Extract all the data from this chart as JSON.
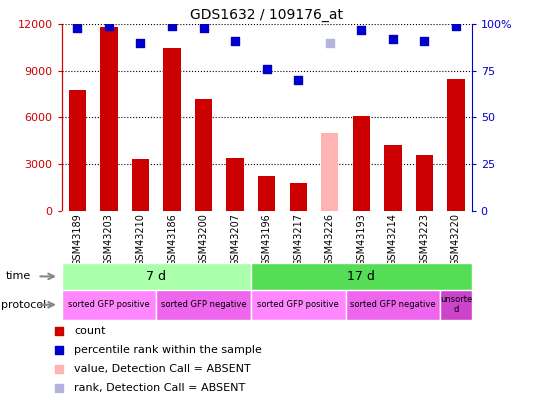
{
  "title": "GDS1632 / 109176_at",
  "samples": [
    "GSM43189",
    "GSM43203",
    "GSM43210",
    "GSM43186",
    "GSM43200",
    "GSM43207",
    "GSM43196",
    "GSM43217",
    "GSM43226",
    "GSM43193",
    "GSM43214",
    "GSM43223",
    "GSM43220"
  ],
  "counts": [
    7800,
    11800,
    3300,
    10500,
    7200,
    3400,
    2200,
    1800,
    5000,
    6100,
    4200,
    3600,
    8500
  ],
  "count_colors": [
    "#cc0000",
    "#cc0000",
    "#cc0000",
    "#cc0000",
    "#cc0000",
    "#cc0000",
    "#cc0000",
    "#cc0000",
    "#ffb3b3",
    "#cc0000",
    "#cc0000",
    "#cc0000",
    "#cc0000"
  ],
  "percentile_ranks": [
    98,
    99,
    90,
    99,
    98,
    91,
    76,
    70,
    90,
    97,
    92,
    91,
    99
  ],
  "percentile_colors": [
    "#0000cc",
    "#0000cc",
    "#0000cc",
    "#0000cc",
    "#0000cc",
    "#0000cc",
    "#0000cc",
    "#0000cc",
    "#b3b3dd",
    "#0000cc",
    "#0000cc",
    "#0000cc",
    "#0000cc"
  ],
  "ylim_left": [
    0,
    12000
  ],
  "ylim_right": [
    0,
    100
  ],
  "yticks_left": [
    0,
    3000,
    6000,
    9000,
    12000
  ],
  "yticks_right": [
    0,
    25,
    50,
    75,
    100
  ],
  "time_groups": [
    {
      "label": "7 d",
      "start": 0,
      "end": 6,
      "color": "#aaffaa"
    },
    {
      "label": "17 d",
      "start": 6,
      "end": 13,
      "color": "#55dd55"
    }
  ],
  "protocol_groups": [
    {
      "label": "sorted GFP positive",
      "start": 0,
      "end": 3,
      "color": "#ff88ff"
    },
    {
      "label": "sorted GFP negative",
      "start": 3,
      "end": 6,
      "color": "#ee66ee"
    },
    {
      "label": "sorted GFP positive",
      "start": 6,
      "end": 9,
      "color": "#ff88ff"
    },
    {
      "label": "sorted GFP negative",
      "start": 9,
      "end": 12,
      "color": "#ee66ee"
    },
    {
      "label": "unsorte\nd",
      "start": 12,
      "end": 13,
      "color": "#cc44cc"
    }
  ],
  "legend_items": [
    {
      "label": "count",
      "color": "#cc0000",
      "marker": "s"
    },
    {
      "label": "percentile rank within the sample",
      "color": "#0000cc",
      "marker": "s"
    },
    {
      "label": "value, Detection Call = ABSENT",
      "color": "#ffb3b3",
      "marker": "s"
    },
    {
      "label": "rank, Detection Call = ABSENT",
      "color": "#b3b3dd",
      "marker": "s"
    }
  ],
  "bar_width": 0.55,
  "chart_bg": "#ffffff",
  "tick_area_bg": "#cccccc"
}
